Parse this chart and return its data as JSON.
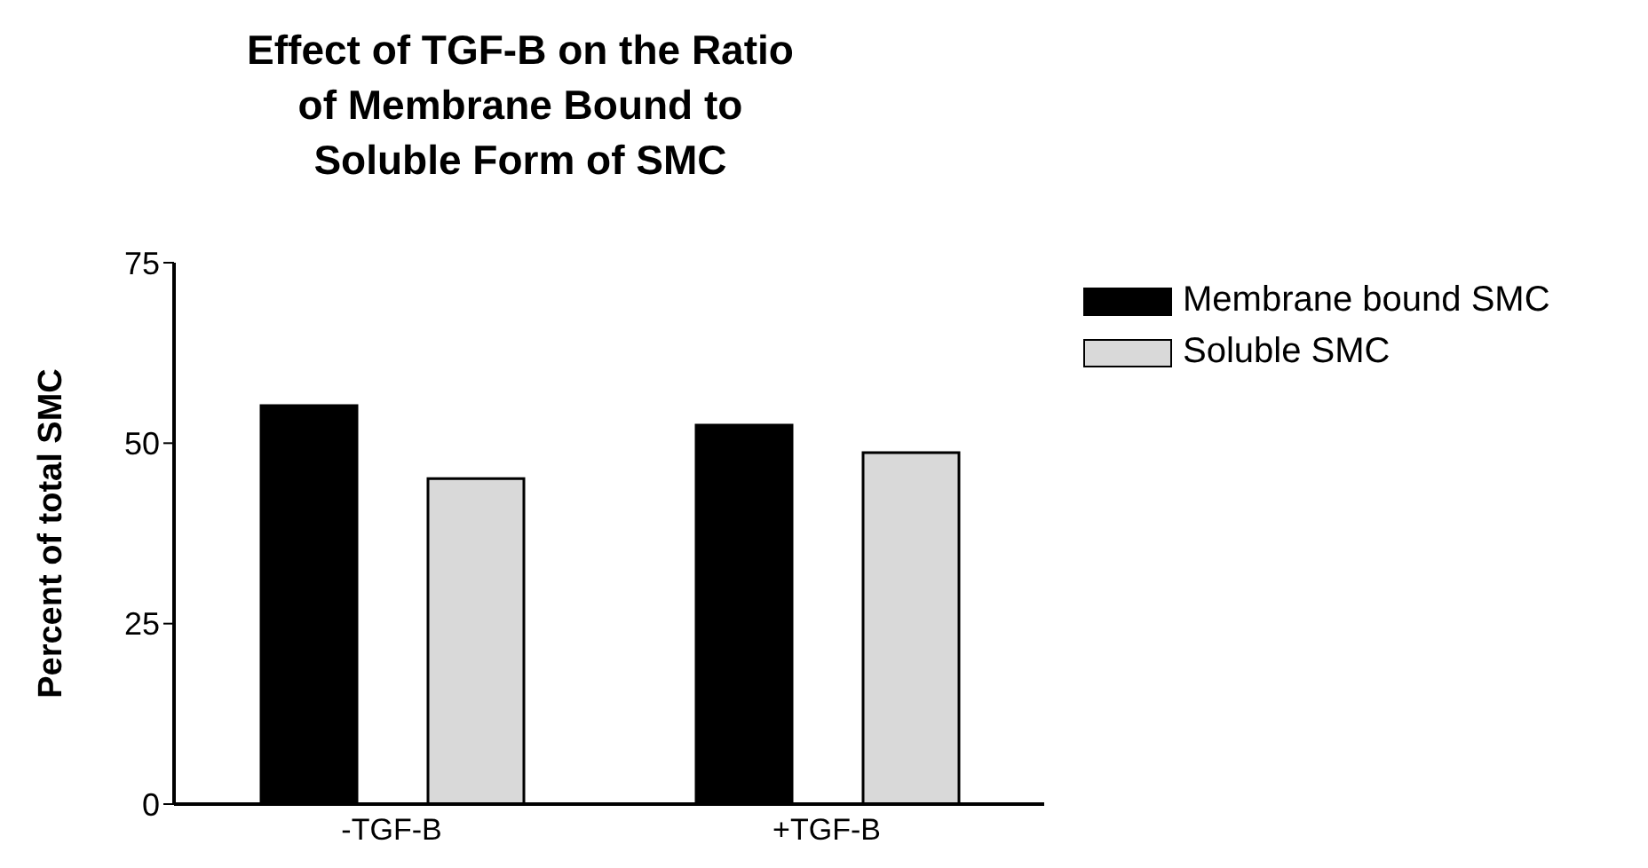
{
  "chart_data": {
    "type": "bar",
    "title": "Effect of TGF-B on the Ratio of Membrane Bound to Soluble Form of SMC",
    "ylabel": "Percent of total SMC",
    "categories": [
      "-TGF-B",
      "+TGF-B"
    ],
    "series": [
      {
        "name": "Membrane bound SMC",
        "color": "#000000",
        "values": [
          55.2,
          52.5
        ]
      },
      {
        "name": "Soluble SMC",
        "color": "#d9d9d9",
        "values": [
          45.1,
          48.7
        ]
      }
    ],
    "ylim": [
      0,
      75
    ],
    "yticks": [
      0,
      25,
      50,
      75
    ],
    "grid": false,
    "legend": "top right"
  }
}
